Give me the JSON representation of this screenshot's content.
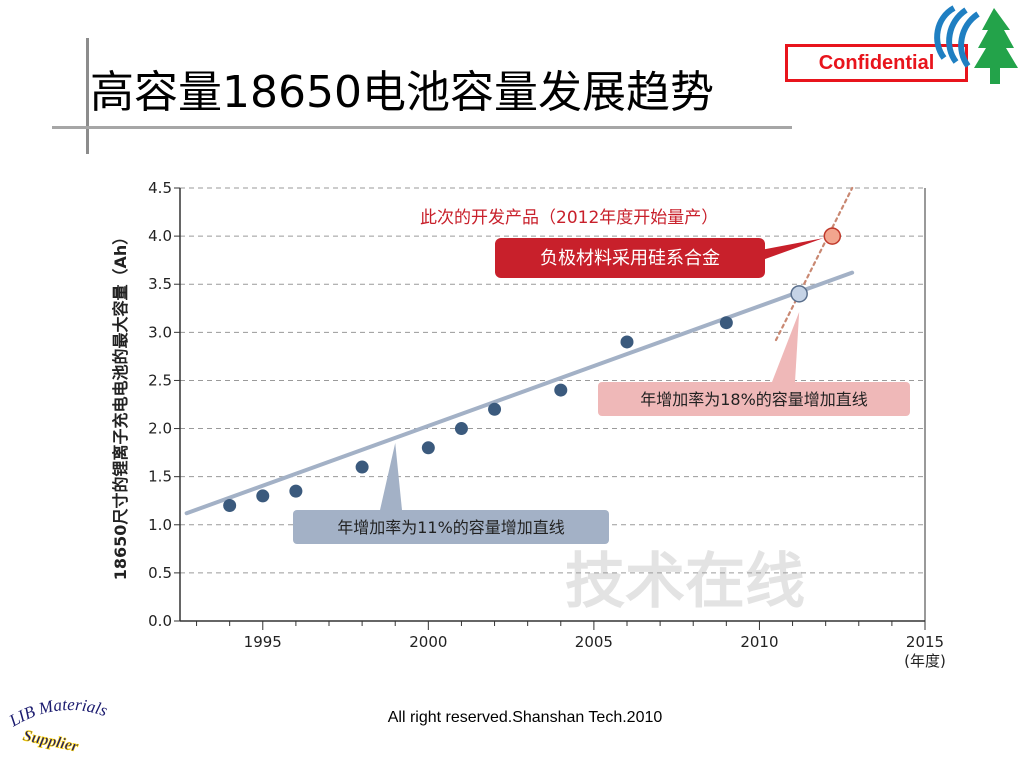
{
  "slide": {
    "title": "高容量18650电池容量发展趋势",
    "confidential": "Confidential",
    "footer": "All right reserved.Shanshan Tech.2010",
    "brand_logo_icon": "shanshan-tree-logo-icon",
    "lib_logo": {
      "line1": "LIB Materials",
      "line2": "Supplier"
    }
  },
  "chart_data": {
    "type": "scatter",
    "ylabel": "18650尺寸的锂离子充电电池的最大容量（Ah）",
    "xlabel": "(年度)",
    "xlim": [
      1992.5,
      2015
    ],
    "ylim": [
      0,
      4.5
    ],
    "x_ticks": [
      1995,
      2000,
      2005,
      2010,
      2015
    ],
    "y_ticks": [
      0.0,
      0.5,
      1.0,
      1.5,
      2.0,
      2.5,
      3.0,
      3.5,
      4.0,
      4.5
    ],
    "grid": "horizontal-dashed",
    "watermark": "技术在线",
    "series": [
      {
        "points": [
          {
            "x": 1994,
            "y": 1.2
          },
          {
            "x": 1995,
            "y": 1.3
          },
          {
            "x": 1996,
            "y": 1.35
          },
          {
            "x": 1998,
            "y": 1.6
          },
          {
            "x": 2000,
            "y": 1.8
          },
          {
            "x": 2001,
            "y": 2.0
          },
          {
            "x": 2002,
            "y": 2.2
          },
          {
            "x": 2004,
            "y": 2.4
          },
          {
            "x": 2006,
            "y": 2.9
          },
          {
            "x": 2009,
            "y": 3.1
          }
        ],
        "color": "#3b5a7d"
      }
    ],
    "trend_lines": [
      {
        "label": "年增加率为11%的容量增加直线",
        "from": {
          "x": 1992.7,
          "y": 1.12
        },
        "to": {
          "x": 2012.8,
          "y": 3.62
        },
        "color": "#a3b1c6",
        "style": "solid"
      },
      {
        "label": "年增加率为18%的容量增加直线",
        "from": {
          "x": 2010.5,
          "y": 2.92
        },
        "to": {
          "x": 2012.8,
          "y": 4.5
        },
        "color": "#c98872",
        "style": "dotted"
      }
    ],
    "highlight_points": [
      {
        "x": 2011.2,
        "y": 3.4,
        "color": "#c5d3e6",
        "stroke": "#5a6f8c"
      },
      {
        "x": 2012.2,
        "y": 4.0,
        "color": "#f2a58e",
        "stroke": "#c0392b"
      }
    ],
    "annotations": {
      "dev_product": "此次的开发产品（2012年度开始量产）",
      "silicon_anode": "负极材料采用硅系合金",
      "rate_18": "年增加率为18%的容量增加直线",
      "rate_11": "年增加率为11%的容量增加直线"
    },
    "colors": {
      "point": "#3b5a7d",
      "trend11": "#a3b1c6",
      "trend18": "#c98872",
      "red_box": "#c8202b",
      "pink_box": "#efb8b8",
      "grey_box": "#a3b1c6"
    }
  }
}
